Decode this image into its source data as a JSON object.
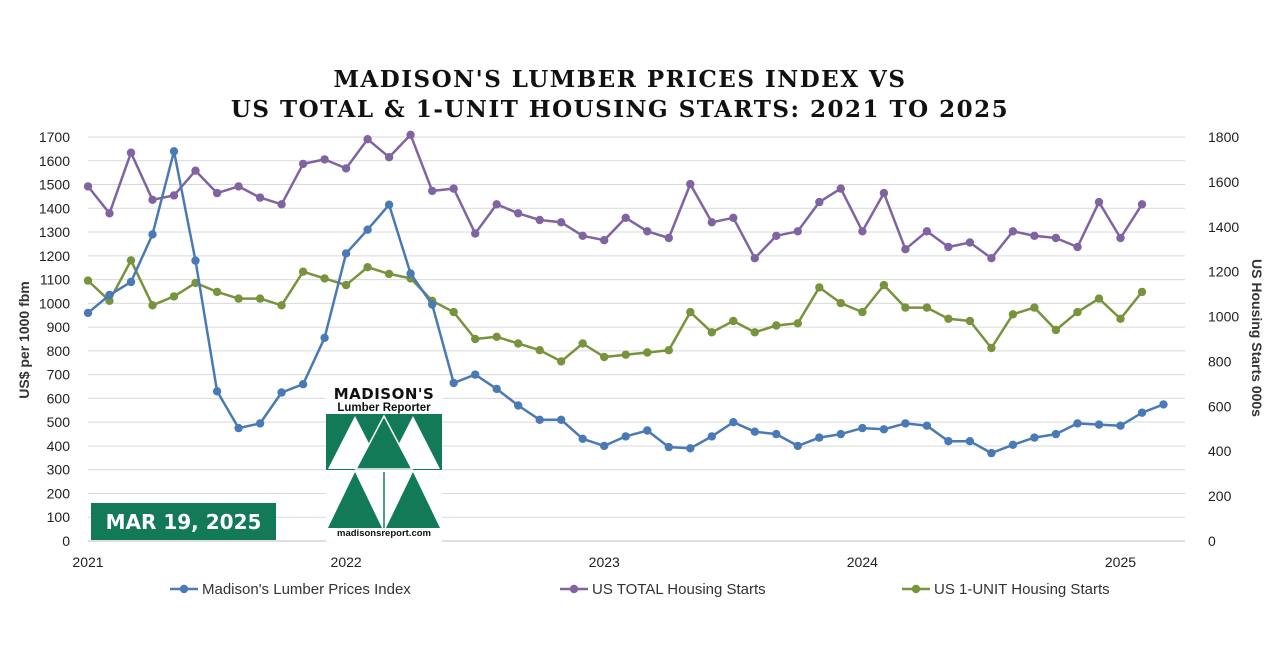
{
  "chart_data": {
    "type": "line",
    "title": [
      "MADISON'S LUMBER PRICES INDEX VS",
      "US TOTAL & 1-UNIT HOUSING STARTS: 2021 TO 2025"
    ],
    "ylabel_left": "US$ per 1000 fbm",
    "ylabel_right": "US Housing Starts 000s",
    "ylim_left": [
      0,
      1700
    ],
    "ylim_right": [
      0,
      1800
    ],
    "yticks_left": [
      "0",
      "100",
      "200",
      "300",
      "400",
      "500",
      "600",
      "700",
      "800",
      "900",
      "1000",
      "1100",
      "1200",
      "1300",
      "1400",
      "1500",
      "1600",
      "1700"
    ],
    "yticks_right": [
      "0",
      "200",
      "400",
      "600",
      "800",
      "1000",
      "1200",
      "1400",
      "1600",
      "1800"
    ],
    "x_start": "2021-01",
    "x_ticks": [
      "2021",
      "2022",
      "2023",
      "2024",
      "2025"
    ],
    "grid": true,
    "legend_position": "bottom",
    "series": [
      {
        "name": "Madison's Lumber Prices Index",
        "axis": "left",
        "color": "#4a7ab5",
        "values": [
          960,
          1035,
          1090,
          1290,
          1640,
          1180,
          630,
          475,
          495,
          625,
          660,
          855,
          1210,
          1310,
          1415,
          1125,
          995,
          665,
          700,
          640,
          570,
          510,
          510,
          430,
          400,
          440,
          465,
          395,
          390,
          440,
          500,
          460,
          450,
          400,
          435,
          450,
          475,
          470,
          495,
          485,
          420,
          420,
          370,
          405,
          435,
          450,
          495,
          490,
          485,
          540,
          575
        ]
      },
      {
        "name": "US TOTAL Housing Starts",
        "axis": "right",
        "color": "#8064a2",
        "values": [
          1580,
          1460,
          1730,
          1520,
          1540,
          1650,
          1550,
          1580,
          1530,
          1500,
          1680,
          1700,
          1660,
          1790,
          1710,
          1810,
          1560,
          1570,
          1370,
          1500,
          1460,
          1430,
          1420,
          1360,
          1340,
          1440,
          1380,
          1350,
          1590,
          1420,
          1440,
          1260,
          1360,
          1380,
          1510,
          1570,
          1380,
          1550,
          1300,
          1380,
          1310,
          1330,
          1260,
          1380,
          1360,
          1350,
          1310,
          1510,
          1350,
          1500
        ]
      },
      {
        "name": "US 1-UNIT Housing Starts",
        "axis": "right",
        "color": "#77933c",
        "values": [
          1160,
          1070,
          1250,
          1050,
          1090,
          1150,
          1110,
          1080,
          1080,
          1050,
          1200,
          1170,
          1140,
          1220,
          1190,
          1170,
          1070,
          1020,
          900,
          910,
          880,
          850,
          800,
          880,
          820,
          830,
          840,
          850,
          1020,
          930,
          980,
          930,
          960,
          970,
          1130,
          1060,
          1020,
          1140,
          1040,
          1040,
          990,
          980,
          860,
          1010,
          1040,
          940,
          1020,
          1080,
          990,
          1110
        ]
      }
    ]
  },
  "date_badge": "MAR 19, 2025",
  "logo": {
    "name": "MADISON'S",
    "subtitle": "Lumber Reporter",
    "url": "madisonsreport.com"
  }
}
